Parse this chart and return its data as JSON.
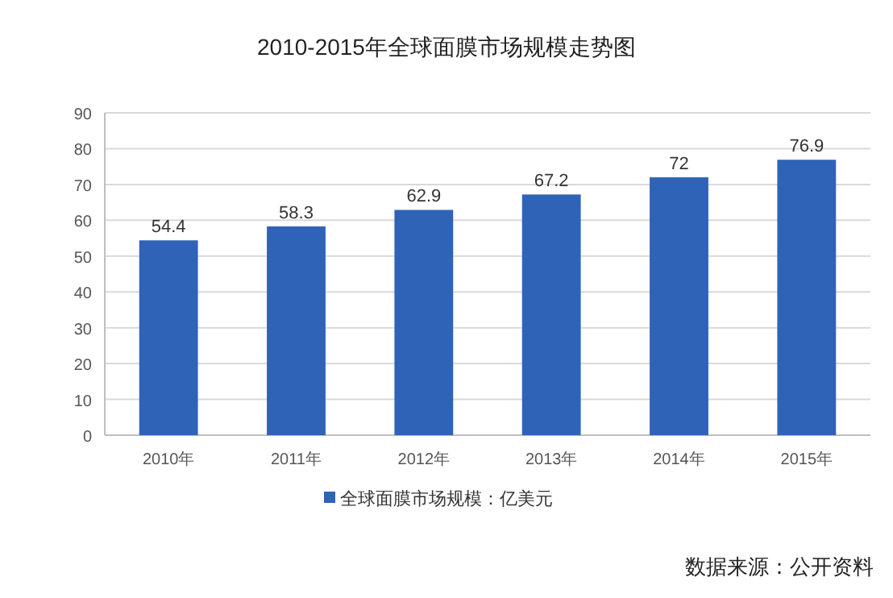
{
  "chart_data": {
    "type": "bar",
    "title": "2010-2015年全球面膜市场规模走势图",
    "categories": [
      "2010年",
      "2011年",
      "2012年",
      "2013年",
      "2014年",
      "2015年"
    ],
    "series": [
      {
        "name": "全球面膜市场规模：亿美元",
        "color": "#2f63b8",
        "values": [
          54.4,
          58.3,
          62.9,
          67.2,
          72,
          76.9
        ]
      }
    ],
    "ylim": [
      0,
      90
    ],
    "yticks": [
      0,
      10,
      20,
      30,
      40,
      50,
      60,
      70,
      80,
      90
    ],
    "grid": "y",
    "legend": "bottom",
    "data_labels": true,
    "annotations": [
      "数据来源：公开资料"
    ]
  }
}
